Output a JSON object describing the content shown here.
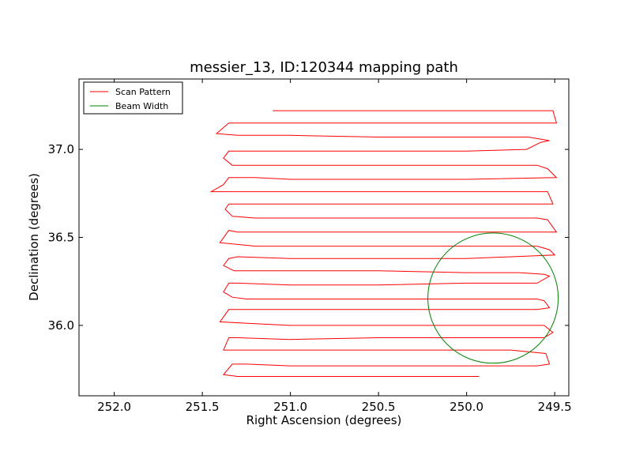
{
  "chart_data": {
    "type": "line",
    "title": "messier_13, ID:120344 mapping path",
    "xlabel": "Right Ascension (degrees)",
    "ylabel": "Declination (degrees)",
    "xlim": [
      252.2,
      249.42
    ],
    "ylim": [
      35.6,
      37.4
    ],
    "x_inverted": true,
    "xticks": [
      252.0,
      251.5,
      251.0,
      250.5,
      250.0,
      249.5
    ],
    "xtick_labels": [
      "252.0",
      "251.5",
      "251.0",
      "250.5",
      "250.0",
      "249.5"
    ],
    "yticks": [
      36.0,
      36.5,
      37.0
    ],
    "ytick_labels": [
      "36.0",
      "36.5",
      "37.0"
    ],
    "grid": false,
    "legend": {
      "position": "top-left",
      "entries": [
        "Scan Pattern",
        "Beam Width"
      ]
    },
    "series": [
      {
        "name": "Scan Pattern",
        "color": "#ff0000",
        "points": [
          [
            251.1,
            37.22
          ],
          [
            250.3,
            37.22
          ],
          [
            249.85,
            37.22
          ],
          [
            249.7,
            37.22
          ],
          [
            249.57,
            37.22
          ],
          [
            249.51,
            37.22
          ],
          [
            249.49,
            37.15
          ],
          [
            249.9,
            37.15
          ],
          [
            250.5,
            37.15
          ],
          [
            251.0,
            37.15
          ],
          [
            251.3,
            37.15
          ],
          [
            251.35,
            37.15
          ],
          [
            251.42,
            37.09
          ],
          [
            251.3,
            37.08
          ],
          [
            251.0,
            37.08
          ],
          [
            250.5,
            37.07
          ],
          [
            250.0,
            37.07
          ],
          [
            249.65,
            37.07
          ],
          [
            249.53,
            37.05
          ],
          [
            249.58,
            37.04
          ],
          [
            249.66,
            37.0
          ],
          [
            250.0,
            36.99
          ],
          [
            250.5,
            36.99
          ],
          [
            251.0,
            36.99
          ],
          [
            251.35,
            36.99
          ],
          [
            251.38,
            36.95
          ],
          [
            251.33,
            36.91
          ],
          [
            250.5,
            36.91
          ],
          [
            250.0,
            36.91
          ],
          [
            249.6,
            36.91
          ],
          [
            249.54,
            36.89
          ],
          [
            249.49,
            36.84
          ],
          [
            250.0,
            36.83
          ],
          [
            250.5,
            36.83
          ],
          [
            251.0,
            36.83
          ],
          [
            251.2,
            36.84
          ],
          [
            251.35,
            36.84
          ],
          [
            251.38,
            36.8
          ],
          [
            251.45,
            36.76
          ],
          [
            251.0,
            36.76
          ],
          [
            250.5,
            36.76
          ],
          [
            250.0,
            36.76
          ],
          [
            249.7,
            36.76
          ],
          [
            249.54,
            36.76
          ],
          [
            249.51,
            36.69
          ],
          [
            249.95,
            36.69
          ],
          [
            250.5,
            36.69
          ],
          [
            251.0,
            36.69
          ],
          [
            251.35,
            36.69
          ],
          [
            251.37,
            36.66
          ],
          [
            251.33,
            36.62
          ],
          [
            251.2,
            36.61
          ],
          [
            250.5,
            36.61
          ],
          [
            250.0,
            36.61
          ],
          [
            249.6,
            36.61
          ],
          [
            249.54,
            36.6
          ],
          [
            249.49,
            36.53
          ],
          [
            249.9,
            36.53
          ],
          [
            250.5,
            36.53
          ],
          [
            251.0,
            36.53
          ],
          [
            251.3,
            36.53
          ],
          [
            251.35,
            36.54
          ],
          [
            251.4,
            36.47
          ],
          [
            251.3,
            36.46
          ],
          [
            251.2,
            36.45
          ],
          [
            250.5,
            36.45
          ],
          [
            250.0,
            36.45
          ],
          [
            249.6,
            36.45
          ],
          [
            249.53,
            36.43
          ],
          [
            249.5,
            36.4
          ],
          [
            250.0,
            36.38
          ],
          [
            250.5,
            36.38
          ],
          [
            251.0,
            36.38
          ],
          [
            251.3,
            36.39
          ],
          [
            251.35,
            36.38
          ],
          [
            251.38,
            36.34
          ],
          [
            251.32,
            36.31
          ],
          [
            251.2,
            36.31
          ],
          [
            250.5,
            36.31
          ],
          [
            250.0,
            36.3
          ],
          [
            249.7,
            36.3
          ],
          [
            249.56,
            36.29
          ],
          [
            249.53,
            36.28
          ],
          [
            249.6,
            36.24
          ],
          [
            250.0,
            36.24
          ],
          [
            250.5,
            36.23
          ],
          [
            251.0,
            36.23
          ],
          [
            251.3,
            36.24
          ],
          [
            251.35,
            36.24
          ],
          [
            251.38,
            36.19
          ],
          [
            251.33,
            36.16
          ],
          [
            251.25,
            36.15
          ],
          [
            250.5,
            36.15
          ],
          [
            250.0,
            36.15
          ],
          [
            249.6,
            36.15
          ],
          [
            249.56,
            36.14
          ],
          [
            249.53,
            36.1
          ],
          [
            249.6,
            36.09
          ],
          [
            250.0,
            36.09
          ],
          [
            250.5,
            36.09
          ],
          [
            251.0,
            36.09
          ],
          [
            251.3,
            36.09
          ],
          [
            251.35,
            36.09
          ],
          [
            251.4,
            36.02
          ],
          [
            251.2,
            36.01
          ],
          [
            251.0,
            36.0
          ],
          [
            250.5,
            36.0
          ],
          [
            250.0,
            36.0
          ],
          [
            249.6,
            36.0
          ],
          [
            249.56,
            36.0
          ],
          [
            249.51,
            35.96
          ],
          [
            249.56,
            35.93
          ],
          [
            250.0,
            35.93
          ],
          [
            250.5,
            35.93
          ],
          [
            251.0,
            35.92
          ],
          [
            251.3,
            35.93
          ],
          [
            251.35,
            35.93
          ],
          [
            251.38,
            35.86
          ],
          [
            251.2,
            35.86
          ],
          [
            250.5,
            35.86
          ],
          [
            250.0,
            35.86
          ],
          [
            249.75,
            35.86
          ],
          [
            249.55,
            35.84
          ],
          [
            249.53,
            35.78
          ],
          [
            249.6,
            35.77
          ],
          [
            250.0,
            35.77
          ],
          [
            250.5,
            35.77
          ],
          [
            251.0,
            35.77
          ],
          [
            251.25,
            35.78
          ],
          [
            251.33,
            35.78
          ],
          [
            251.38,
            35.72
          ],
          [
            251.3,
            35.71
          ],
          [
            251.2,
            35.71
          ],
          [
            250.5,
            35.71
          ],
          [
            250.0,
            35.71
          ],
          [
            249.93,
            35.71
          ]
        ]
      },
      {
        "name": "Beam Width",
        "color": "#008000",
        "circle": {
          "center": [
            249.85,
            36.155
          ],
          "radius_deg": 0.37
        }
      }
    ]
  }
}
